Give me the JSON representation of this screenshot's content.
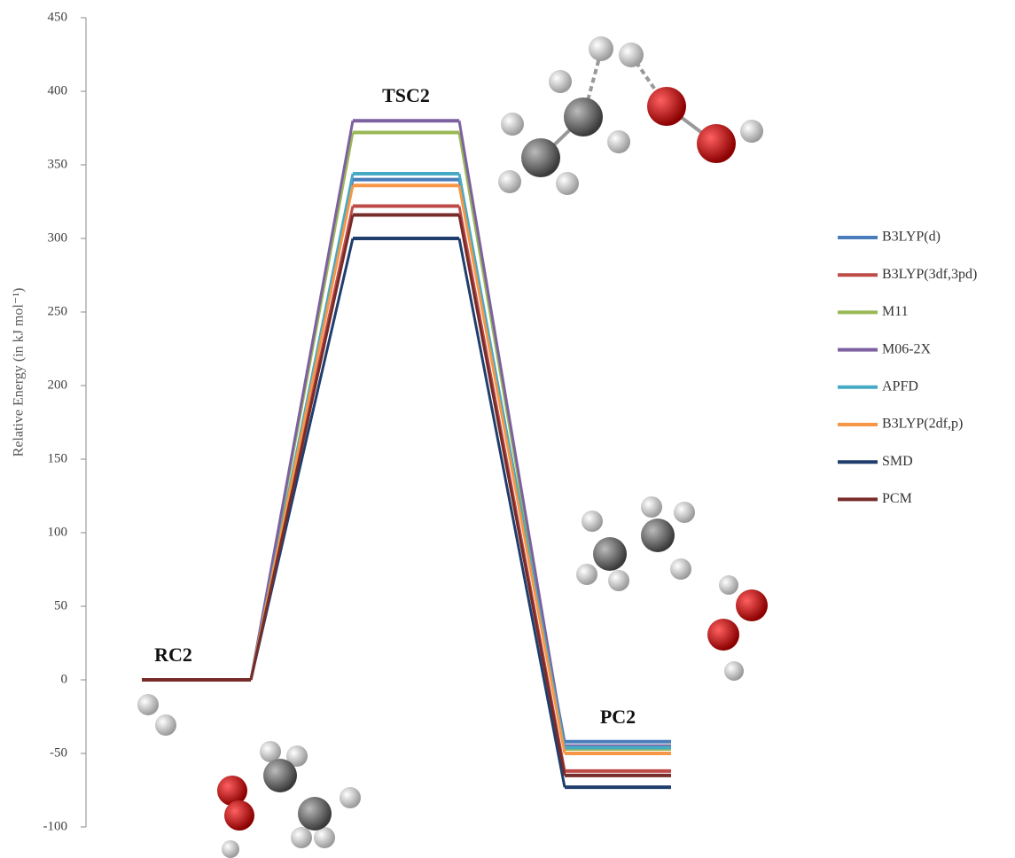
{
  "chart_data": {
    "type": "energy-profile",
    "y_label": "Relative Energy (in kJ mol⁻¹)",
    "categories": [
      "RC2",
      "TSC2",
      "PC2"
    ],
    "ylim": [
      -100,
      450
    ],
    "yticks": [
      -100,
      -50,
      0,
      50,
      100,
      150,
      200,
      250,
      300,
      350,
      400,
      450
    ],
    "series": [
      {
        "name": "B3LYP(d)",
        "color": "#4a7ebb",
        "values": [
          0,
          340,
          -42
        ]
      },
      {
        "name": "B3LYP(3df,3pd)",
        "color": "#be4b48",
        "values": [
          0,
          322,
          -62
        ]
      },
      {
        "name": "M11",
        "color": "#98b954",
        "values": [
          0,
          372,
          -47
        ]
      },
      {
        "name": "M06-2X",
        "color": "#7d60a0",
        "values": [
          0,
          380,
          -45
        ]
      },
      {
        "name": "APFD",
        "color": "#46aac5",
        "values": [
          0,
          344,
          -46
        ]
      },
      {
        "name": "B3LYP(2df,p)",
        "color": "#f79646",
        "values": [
          0,
          336,
          -50
        ]
      },
      {
        "name": "SMD",
        "color": "#1f3e6e",
        "values": [
          0,
          300,
          -73
        ]
      },
      {
        "name": "PCM",
        "color": "#772c2a",
        "values": [
          0,
          316,
          -65
        ]
      }
    ]
  }
}
